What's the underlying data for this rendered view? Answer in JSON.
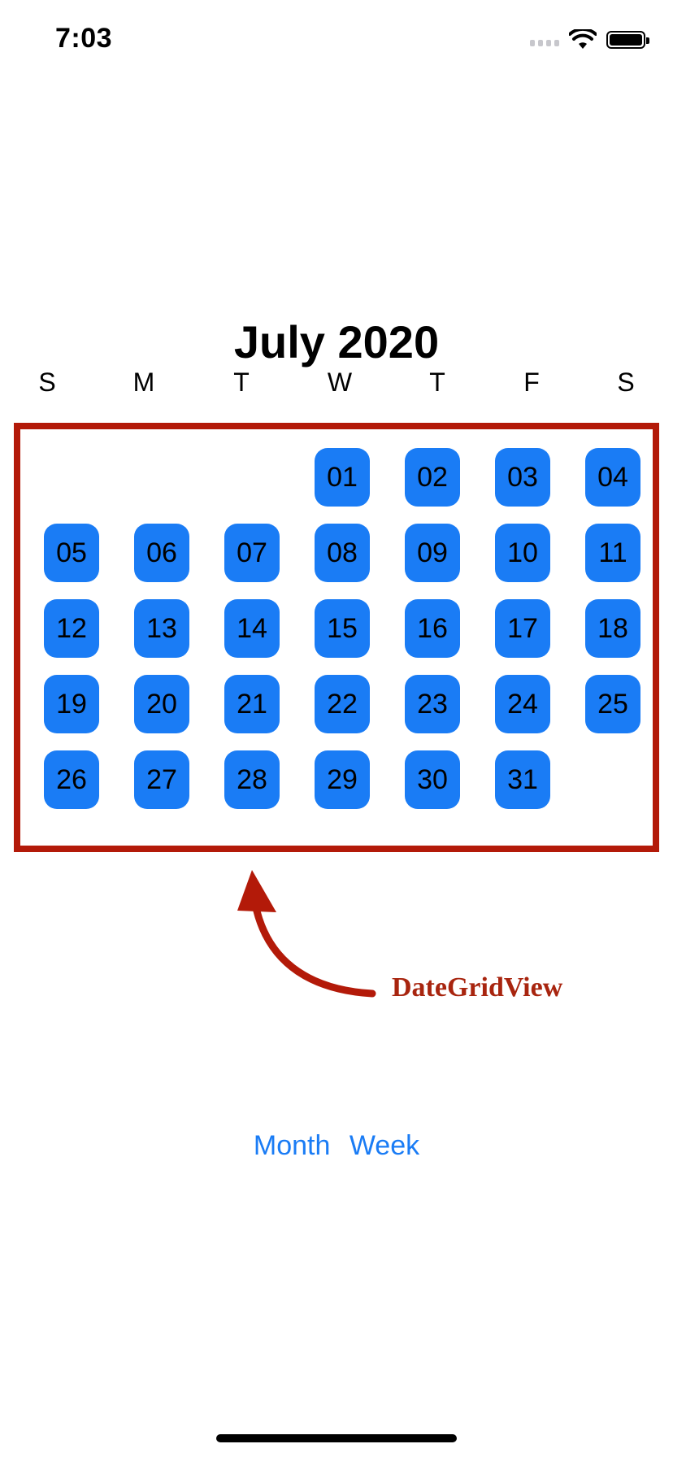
{
  "status_bar": {
    "time": "7:03",
    "wifi_icon": "wifi-icon",
    "battery_icon": "battery-icon"
  },
  "calendar": {
    "title": "July 2020",
    "weekdays": [
      "S",
      "M",
      "T",
      "W",
      "T",
      "F",
      "S"
    ],
    "days": [
      "01",
      "02",
      "03",
      "04",
      "05",
      "06",
      "07",
      "08",
      "09",
      "10",
      "11",
      "12",
      "13",
      "14",
      "15",
      "16",
      "17",
      "18",
      "19",
      "20",
      "21",
      "22",
      "23",
      "24",
      "25",
      "26",
      "27",
      "28",
      "29",
      "30",
      "31"
    ],
    "first_weekday_index": 3,
    "day_color": "#1a7cf5"
  },
  "annotation": {
    "label": "DateGridView",
    "color": "#b31a09"
  },
  "mode_buttons": {
    "month": "Month",
    "week": "Week"
  }
}
